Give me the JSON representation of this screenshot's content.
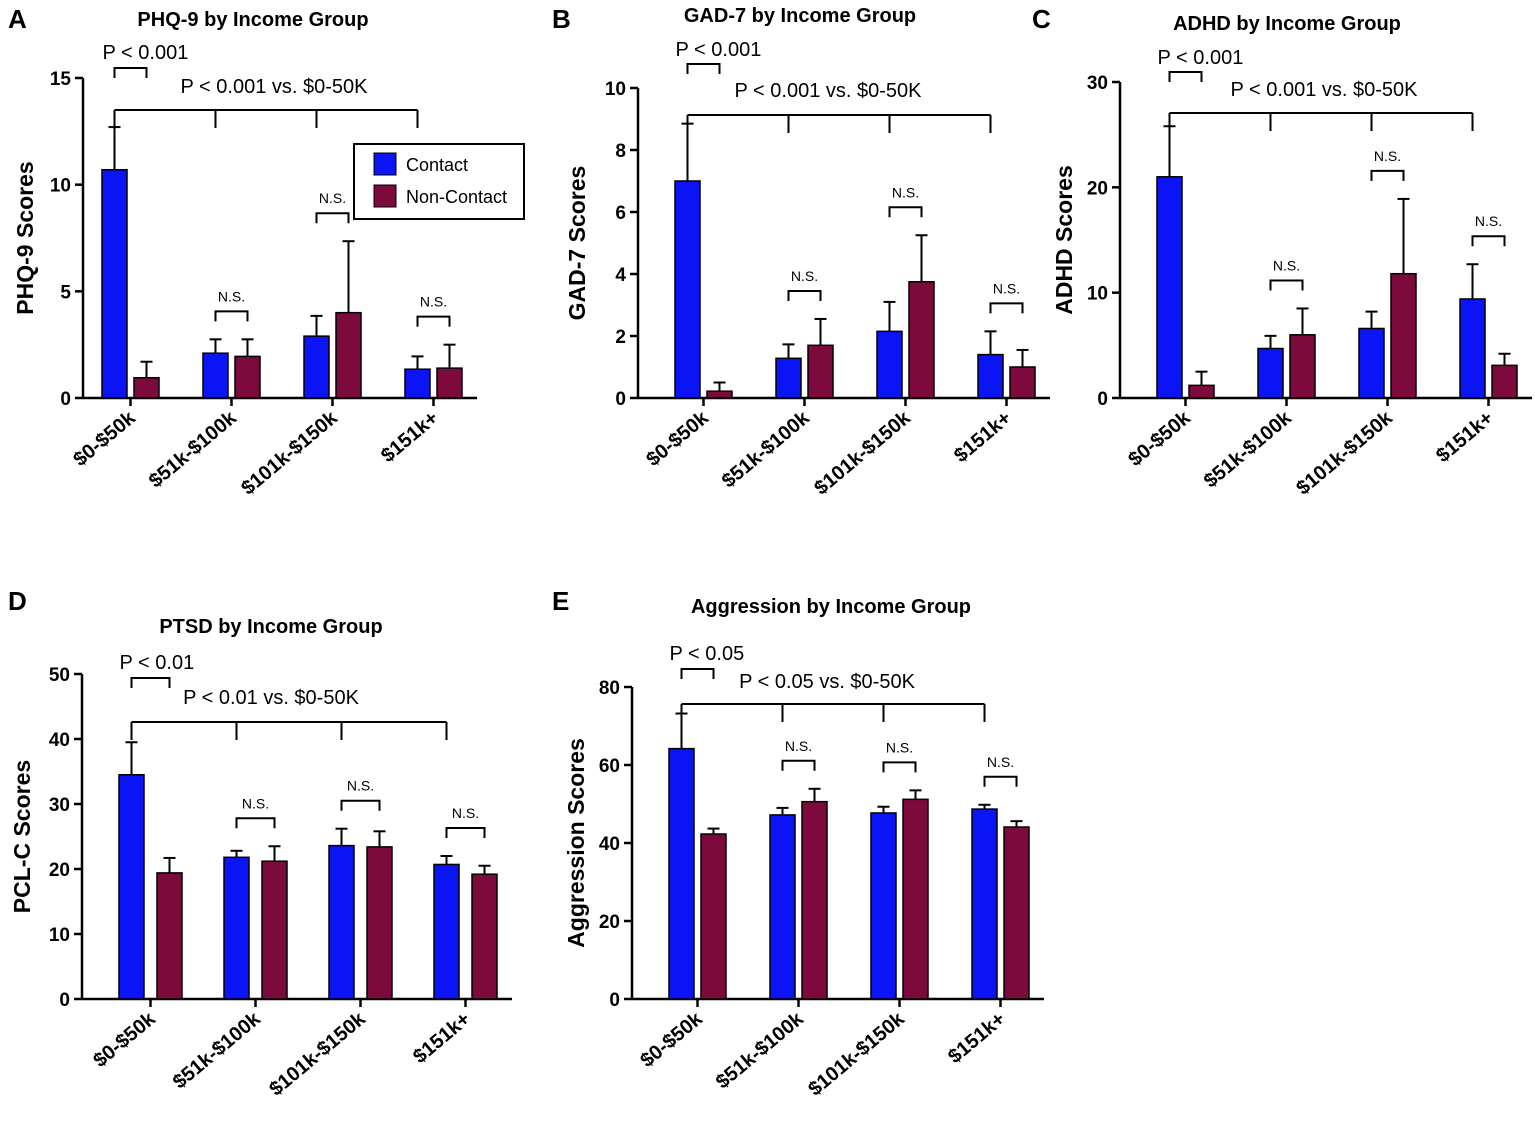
{
  "colors": {
    "contact": "#0a14f5",
    "noncontact": "#7d0a3c",
    "axis": "#000000"
  },
  "legend": {
    "contact": "Contact",
    "noncontact": "Non-Contact"
  },
  "chart_data": [
    {
      "type": "bar",
      "panel": "A",
      "title": "PHQ-9 by Income Group",
      "ylabel": "PHQ-9 Scores",
      "categories": [
        "$0-$50k",
        "$51k-$100k",
        "$101k-$150k",
        "$151k+"
      ],
      "ylim": [
        0,
        15
      ],
      "yticks": [
        0,
        5,
        10,
        15
      ],
      "series": [
        {
          "name": "Contact",
          "values": [
            10.7,
            2.1,
            2.9,
            1.35
          ],
          "errors": [
            2.0,
            0.65,
            0.95,
            0.6
          ]
        },
        {
          "name": "Non-Contact",
          "values": [
            0.95,
            1.95,
            4.0,
            1.4
          ],
          "errors": [
            0.75,
            0.8,
            3.35,
            1.1
          ]
        }
      ],
      "annotations": {
        "pair_p": "P < 0.001",
        "overall_p": "P < 0.001 vs. $0-50K",
        "ns": [
          "N.S.",
          "N.S.",
          "N.S."
        ]
      }
    },
    {
      "type": "bar",
      "panel": "B",
      "title": "GAD-7 by Income Group",
      "ylabel": "GAD-7 Scores",
      "categories": [
        "$0-$50k",
        "$51k-$100k",
        "$101k-$150k",
        "$151k+"
      ],
      "ylim": [
        0,
        10
      ],
      "yticks": [
        0,
        2,
        4,
        6,
        8,
        10
      ],
      "series": [
        {
          "name": "Contact",
          "values": [
            7.0,
            1.28,
            2.15,
            1.4
          ],
          "errors": [
            1.85,
            0.45,
            0.95,
            0.75
          ]
        },
        {
          "name": "Non-Contact",
          "values": [
            0.22,
            1.7,
            3.75,
            1.0
          ],
          "errors": [
            0.28,
            0.85,
            1.5,
            0.55
          ]
        }
      ],
      "annotations": {
        "pair_p": "P < 0.001",
        "overall_p": "P < 0.001 vs. $0-50K",
        "ns": [
          "N.S.",
          "N.S.",
          "N.S."
        ]
      }
    },
    {
      "type": "bar",
      "panel": "C",
      "title": "ADHD by Income Group",
      "ylabel": "ADHD Scores",
      "categories": [
        "$0-$50k",
        "$51k-$100k",
        "$101k-$150k",
        "$151k+"
      ],
      "ylim": [
        0,
        30
      ],
      "yticks": [
        0,
        10,
        20,
        30
      ],
      "series": [
        {
          "name": "Contact",
          "values": [
            21.0,
            4.7,
            6.6,
            9.4
          ],
          "errors": [
            4.8,
            1.2,
            1.6,
            3.3
          ]
        },
        {
          "name": "Non-Contact",
          "values": [
            1.2,
            6.0,
            11.8,
            3.1
          ],
          "errors": [
            1.3,
            2.5,
            7.1,
            1.1
          ]
        }
      ],
      "annotations": {
        "pair_p": "P < 0.001",
        "overall_p": "P < 0.001 vs. $0-50K",
        "ns": [
          "N.S.",
          "N.S.",
          "N.S."
        ]
      }
    },
    {
      "type": "bar",
      "panel": "D",
      "title": "PTSD by Income Group",
      "ylabel": "PCL-C Scores",
      "categories": [
        "$0-$50k",
        "$51k-$100k",
        "$101k-$150k",
        "$151k+"
      ],
      "ylim": [
        0,
        50
      ],
      "yticks": [
        0,
        10,
        20,
        30,
        40,
        50
      ],
      "series": [
        {
          "name": "Contact",
          "values": [
            34.5,
            21.8,
            23.6,
            20.7
          ],
          "errors": [
            5.0,
            1.0,
            2.6,
            1.3
          ]
        },
        {
          "name": "Non-Contact",
          "values": [
            19.4,
            21.2,
            23.4,
            19.2
          ],
          "errors": [
            2.3,
            2.3,
            2.4,
            1.3
          ]
        }
      ],
      "annotations": {
        "pair_p": "P < 0.01",
        "overall_p": "P < 0.01 vs. $0-50K",
        "ns": [
          "N.S.",
          "N.S.",
          "N.S."
        ]
      }
    },
    {
      "type": "bar",
      "panel": "E",
      "title": "Aggression by Income Group",
      "ylabel": "Aggression Scores",
      "categories": [
        "$0-$50k",
        "$51k-$100k",
        "$101k-$150k",
        "$151k+"
      ],
      "ylim": [
        0,
        80
      ],
      "yticks": [
        0,
        20,
        40,
        60,
        80
      ],
      "series": [
        {
          "name": "Contact",
          "values": [
            64.2,
            47.2,
            47.7,
            48.7
          ],
          "errors": [
            9.0,
            1.8,
            1.6,
            1.1
          ]
        },
        {
          "name": "Non-Contact",
          "values": [
            42.3,
            50.6,
            51.2,
            44.1
          ],
          "errors": [
            1.4,
            3.3,
            2.3,
            1.5
          ]
        }
      ],
      "annotations": {
        "pair_p": "P < 0.05",
        "overall_p": "P < 0.05 vs. $0-50K",
        "ns": [
          "N.S.",
          "N.S.",
          "N.S."
        ]
      }
    }
  ]
}
